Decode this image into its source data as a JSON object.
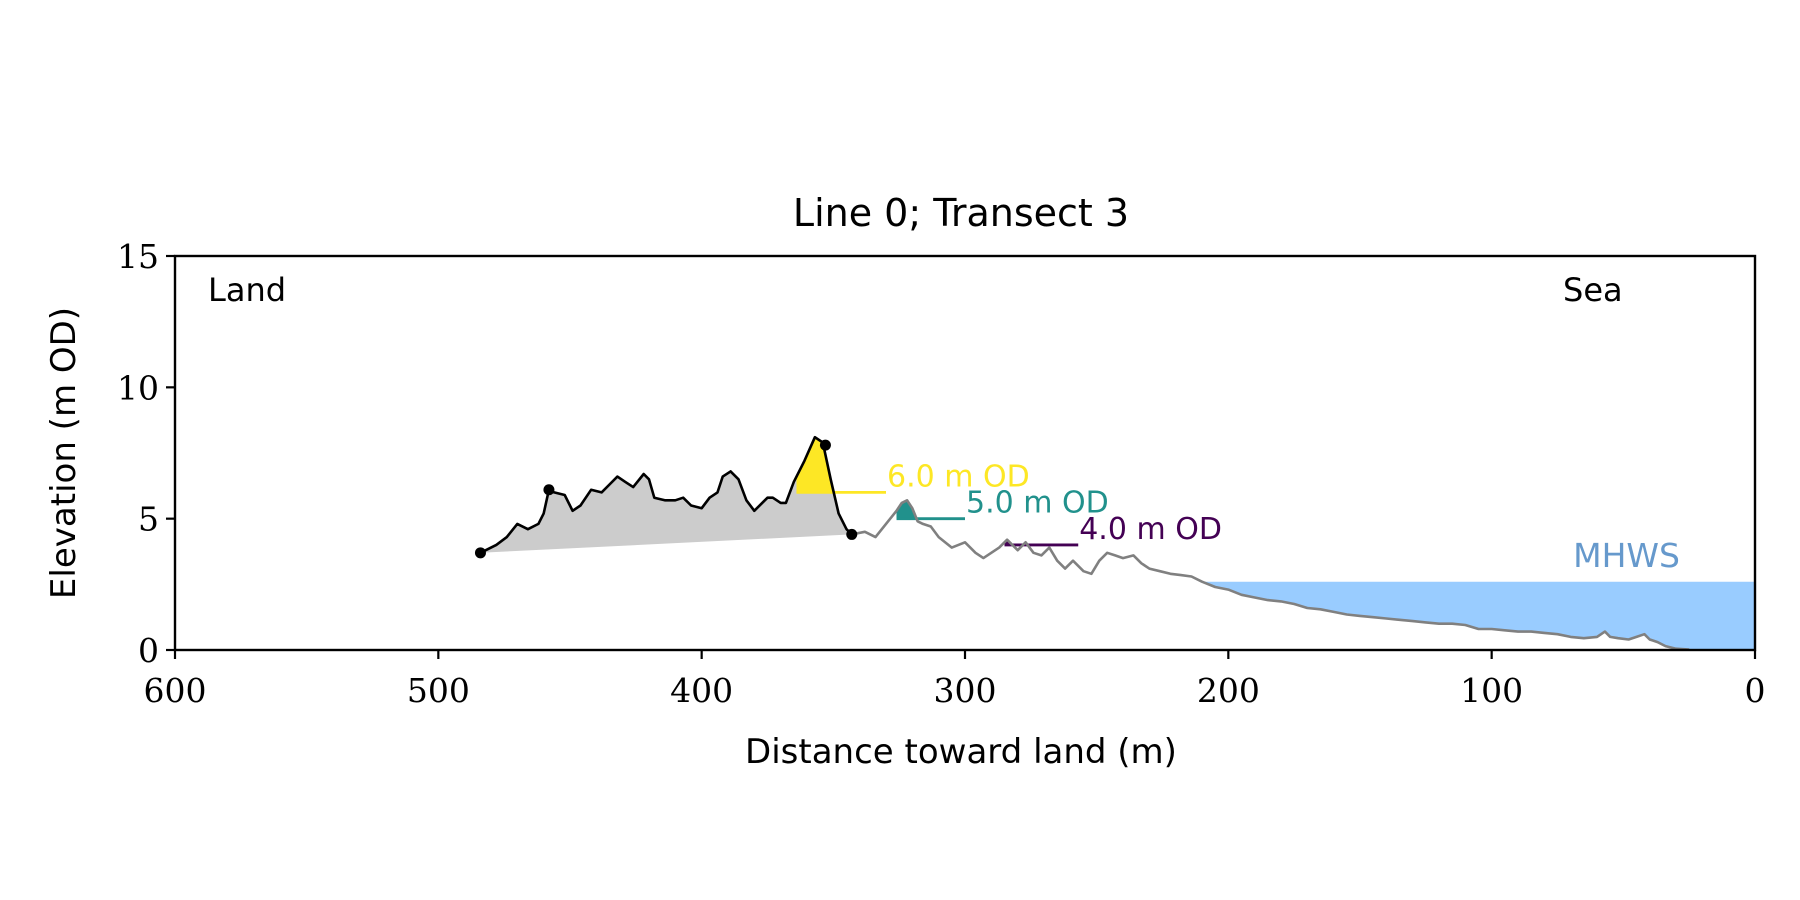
{
  "chart_data": {
    "type": "area",
    "title": "Line 0; Transect 3",
    "xlabel": "Distance toward land (m)",
    "ylabel": "Elevation (m OD)",
    "xlim": [
      600,
      0
    ],
    "ylim": [
      0,
      15
    ],
    "x_inverted": true,
    "xticks": [
      600,
      500,
      400,
      300,
      200,
      100,
      0
    ],
    "yticks": [
      0,
      5,
      10,
      15
    ],
    "grid": false,
    "corner_labels": {
      "left": "Land",
      "right": "Sea"
    },
    "mhws": {
      "label": "MHWS",
      "elevation": 2.6,
      "from_x": 210,
      "to_x": 0,
      "color": "#99ccff",
      "label_color": "#6699cc"
    },
    "series": [
      {
        "role": "dune-profile",
        "color": "#000000",
        "x": [
          484,
          478,
          474,
          470,
          466,
          462,
          460,
          458,
          456,
          452,
          449,
          446,
          442,
          438,
          435,
          432,
          429,
          426,
          422,
          420,
          418,
          414,
          410,
          407,
          404,
          400,
          397,
          394,
          392,
          389,
          386,
          383,
          380,
          377,
          375,
          373,
          370,
          368,
          365,
          361,
          357,
          354,
          351,
          348,
          345,
          343
        ],
        "y": [
          3.7,
          4.0,
          4.3,
          4.8,
          4.6,
          4.8,
          5.2,
          6.1,
          6.0,
          5.9,
          5.3,
          5.5,
          6.1,
          6.0,
          6.3,
          6.6,
          6.4,
          6.2,
          6.7,
          6.5,
          5.8,
          5.7,
          5.7,
          5.8,
          5.5,
          5.4,
          5.8,
          6.0,
          6.6,
          6.8,
          6.5,
          5.7,
          5.3,
          5.6,
          5.8,
          5.8,
          5.6,
          5.6,
          6.4,
          7.2,
          8.1,
          7.9,
          6.5,
          5.2,
          4.6,
          4.4
        ]
      },
      {
        "role": "seaward-profile",
        "color": "#808080",
        "x": [
          343,
          338,
          334,
          330,
          326,
          324,
          322,
          320,
          318,
          316,
          313,
          310,
          305,
          300,
          296,
          293,
          290,
          287,
          284,
          282,
          280,
          277,
          274,
          271,
          268,
          265,
          262,
          259,
          255,
          252,
          249,
          246,
          243,
          240,
          236,
          233,
          230,
          226,
          222,
          218,
          214,
          210,
          205,
          200,
          195,
          190,
          185,
          180,
          175,
          170,
          165,
          160,
          155,
          150,
          145,
          140,
          135,
          130,
          125,
          120,
          115,
          110,
          105,
          100,
          95,
          90,
          85,
          80,
          75,
          70,
          65,
          60,
          57,
          55,
          52,
          48,
          45,
          42,
          40,
          37,
          34,
          30,
          25
        ],
        "y": [
          4.4,
          4.5,
          4.3,
          4.8,
          5.3,
          5.6,
          5.7,
          5.4,
          4.9,
          4.8,
          4.7,
          4.3,
          3.9,
          4.1,
          3.7,
          3.5,
          3.7,
          3.9,
          4.2,
          4.0,
          3.8,
          4.1,
          3.7,
          3.6,
          3.9,
          3.4,
          3.1,
          3.4,
          3.0,
          2.9,
          3.4,
          3.7,
          3.6,
          3.5,
          3.6,
          3.3,
          3.1,
          3.0,
          2.9,
          2.85,
          2.8,
          2.6,
          2.4,
          2.3,
          2.1,
          2.0,
          1.9,
          1.85,
          1.75,
          1.6,
          1.55,
          1.45,
          1.35,
          1.3,
          1.25,
          1.2,
          1.15,
          1.1,
          1.05,
          1.0,
          1.0,
          0.95,
          0.8,
          0.8,
          0.75,
          0.7,
          0.7,
          0.65,
          0.6,
          0.5,
          0.45,
          0.5,
          0.7,
          0.5,
          0.45,
          0.4,
          0.5,
          0.6,
          0.4,
          0.3,
          0.15,
          0.05,
          0.02
        ]
      }
    ],
    "markers": {
      "color": "#000000",
      "x": [
        484,
        458,
        353,
        343
      ],
      "y": [
        3.7,
        6.1,
        7.8,
        4.4
      ]
    },
    "dune_base": {
      "fill": "#cccccc",
      "from": [
        484,
        3.7
      ],
      "to": [
        343,
        4.4
      ]
    },
    "levels": [
      {
        "label": "6.0 m OD",
        "elevation": 6.0,
        "color": "#fde725",
        "fill_from_x": 364,
        "fill_to_x": 349,
        "line_to_x": 330
      },
      {
        "label": "5.0 m OD",
        "elevation": 5.0,
        "color": "#21918c",
        "fill_from_x": 326,
        "fill_to_x": 317,
        "line_to_x": 300
      },
      {
        "label": "4.0 m OD",
        "elevation": 4.0,
        "color": "#440154",
        "fill_from_x": 285,
        "fill_to_x": 281,
        "line_to_x": 257
      }
    ]
  }
}
